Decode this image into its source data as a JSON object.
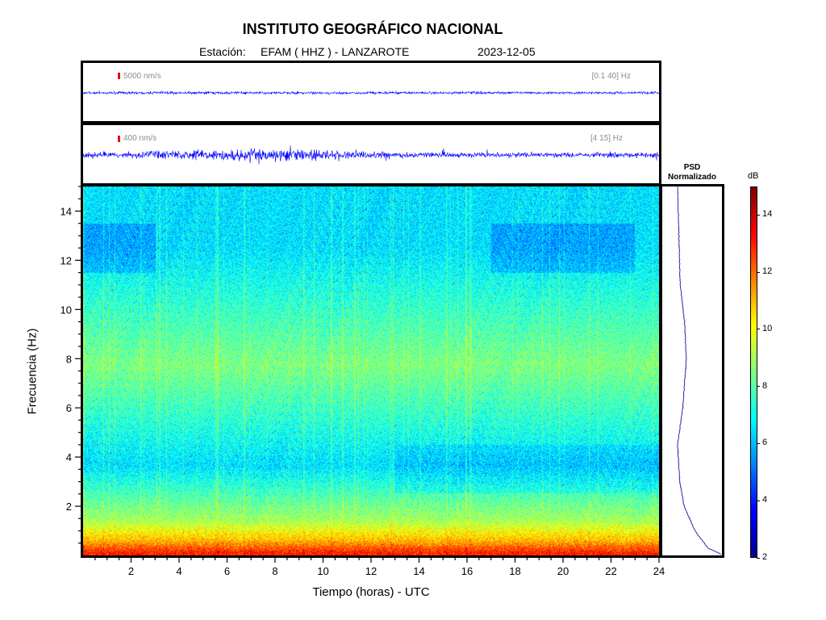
{
  "header": {
    "title": "INSTITUTO GEOGRÁFICO NACIONAL",
    "station_label": "Estación:",
    "station": "EFAM ( HHZ ) - LANZAROTE",
    "date": "2023-12-05"
  },
  "traces": [
    {
      "scale": "5000 nm/s",
      "band": "[0.1 40] Hz"
    },
    {
      "scale": "400 nm/s",
      "band": "[4 15] Hz"
    }
  ],
  "psd": {
    "title_line1": "PSD",
    "title_line2": "Normalizado"
  },
  "colorbar": {
    "unit": "dB",
    "ticks": [
      "2",
      "4",
      "6",
      "8",
      "10",
      "12",
      "14"
    ]
  },
  "chart_data": {
    "type": "heatmap",
    "title": "INSTITUTO GEOGRÁFICO NACIONAL",
    "xlabel": "Tiempo (horas) - UTC",
    "ylabel": "Frecuencia  (Hz)",
    "xlim": [
      0,
      24
    ],
    "ylim": [
      0,
      15
    ],
    "xticks": [
      "2",
      "4",
      "6",
      "8",
      "10",
      "12",
      "14",
      "16",
      "18",
      "20",
      "22",
      "24"
    ],
    "yticks": [
      "2",
      "4",
      "6",
      "8",
      "10",
      "12",
      "14"
    ],
    "color_range_db": [
      2,
      15
    ],
    "colormap": "jet",
    "frequency_bands": [
      {
        "from_hz": 0,
        "to_hz": 0.2,
        "level_db": 13
      },
      {
        "from_hz": 0.2,
        "to_hz": 1,
        "level_db": 11
      },
      {
        "from_hz": 1,
        "to_hz": 1.8,
        "level_db": 9
      },
      {
        "from_hz": 1.8,
        "to_hz": 5.5,
        "level_db": 6.5
      },
      {
        "from_hz": 5.5,
        "to_hz": 10,
        "level_db": 8.5
      },
      {
        "from_hz": 10,
        "to_hz": 15,
        "level_db": 6.5
      }
    ],
    "psd_profile": [
      {
        "freq_hz": 0.05,
        "value": 1.0
      },
      {
        "freq_hz": 0.3,
        "value": 0.7
      },
      {
        "freq_hz": 1,
        "value": 0.4
      },
      {
        "freq_hz": 2,
        "value": 0.15
      },
      {
        "freq_hz": 3,
        "value": 0.05
      },
      {
        "freq_hz": 4.5,
        "value": 0.0
      },
      {
        "freq_hz": 6,
        "value": 0.12
      },
      {
        "freq_hz": 8,
        "value": 0.2
      },
      {
        "freq_hz": 9.5,
        "value": 0.16
      },
      {
        "freq_hz": 11,
        "value": 0.06
      },
      {
        "freq_hz": 13,
        "value": 0.03
      },
      {
        "freq_hz": 15,
        "value": 0.0
      }
    ]
  }
}
